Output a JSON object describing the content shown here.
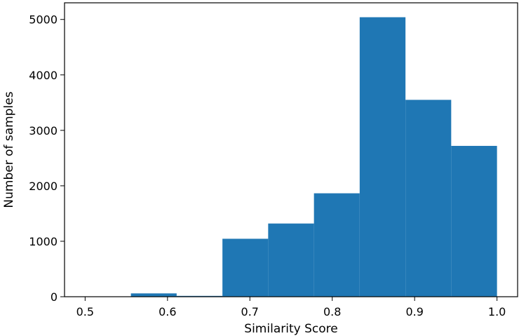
{
  "chart_data": {
    "type": "bar",
    "title": "",
    "xlabel": "Similarity Score",
    "ylabel": "Number of samples",
    "xlim": [
      0.475,
      1.025
    ],
    "ylim": [
      0,
      5300
    ],
    "xticks": [
      "0.5",
      "0.6",
      "0.7",
      "0.8",
      "0.9",
      "1.0"
    ],
    "yticks": [
      "0",
      "1000",
      "2000",
      "3000",
      "4000",
      "5000"
    ],
    "bin_edges": [
      0.5,
      0.5556,
      0.6111,
      0.6667,
      0.7222,
      0.7778,
      0.8333,
      0.8889,
      0.9444,
      1.0
    ],
    "values": [
      0,
      60,
      15,
      1045,
      1320,
      1865,
      5040,
      3550,
      2720
    ],
    "bar_color": "#1f77b4",
    "grid": false,
    "legend": "none"
  }
}
